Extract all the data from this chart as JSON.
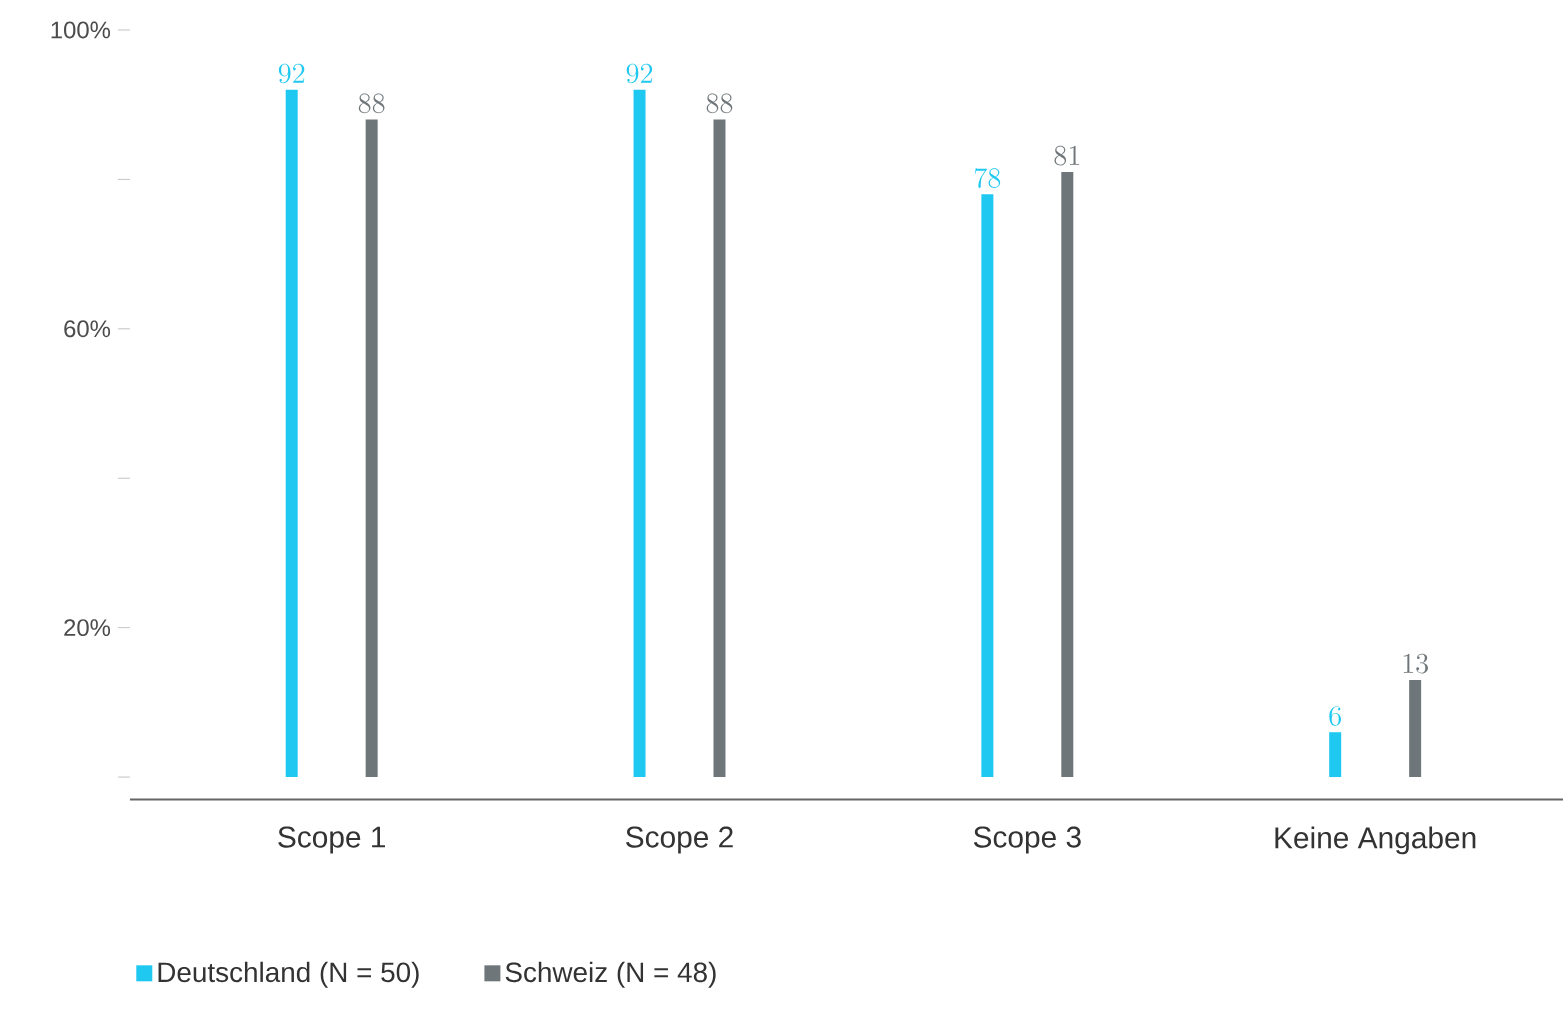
{
  "chart_data": {
    "type": "bar",
    "categories": [
      "Scope 1",
      "Scope 2",
      "Scope 3",
      "Keine Angaben"
    ],
    "series": [
      {
        "name": "Deutschland (N = 50)",
        "color": "#1ec8f0",
        "values": [
          92,
          92,
          78,
          6
        ]
      },
      {
        "name": "Schweiz (N = 48)",
        "color": "#6e767a",
        "values": [
          88,
          88,
          81,
          13
        ]
      }
    ],
    "ylim": [
      -3,
      100
    ],
    "yticks": [
      {
        "value": 0,
        "label": null
      },
      {
        "value": 20,
        "label": "20%"
      },
      {
        "value": 40,
        "label": null
      },
      {
        "value": 60,
        "label": "60%"
      },
      {
        "value": 80,
        "label": null
      },
      {
        "value": 100,
        "label": "100%"
      }
    ],
    "data_labels": true,
    "legend": "bottom",
    "grid": false
  }
}
